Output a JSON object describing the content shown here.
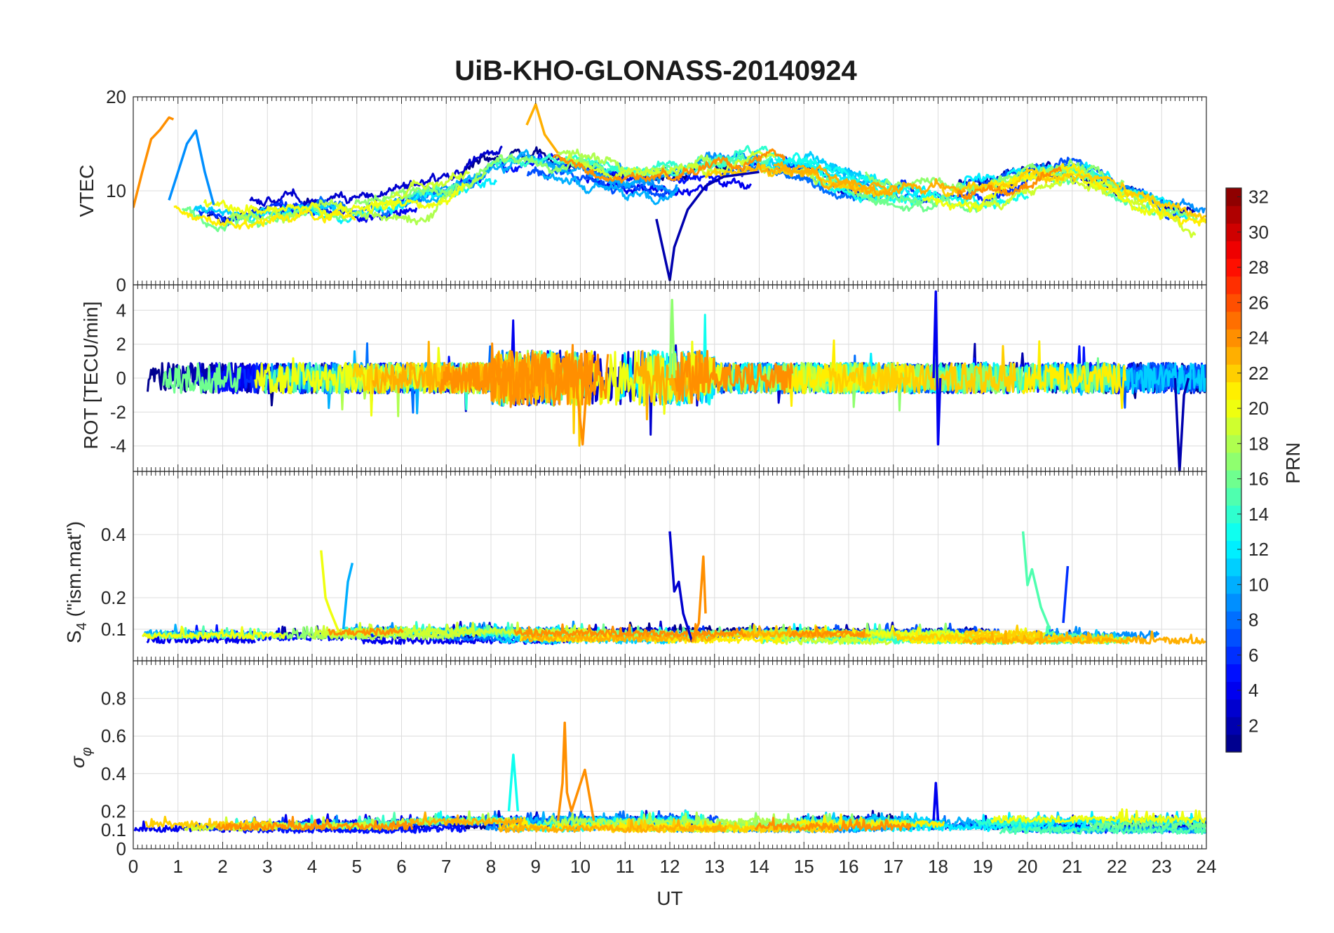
{
  "chart_data": {
    "title": "UiB-KHO-GLONASS-20140924",
    "type": "line",
    "xlabel": "UT",
    "xlim": [
      0,
      24
    ],
    "x_ticks": [
      "0",
      "1",
      "2",
      "3",
      "4",
      "5",
      "6",
      "7",
      "8",
      "9",
      "10",
      "11",
      "12",
      "13",
      "14",
      "15",
      "16",
      "17",
      "18",
      "19",
      "20",
      "21",
      "22",
      "23",
      "24"
    ],
    "panels": [
      {
        "id": "vtec",
        "ylabel": "VTEC",
        "ylim": [
          0,
          20
        ],
        "y_ticks": [
          {
            "v": 0,
            "t": "0"
          },
          {
            "v": 10,
            "t": "10"
          },
          {
            "v": 20,
            "t": "20"
          }
        ],
        "baseline": [
          [
            0,
            8
          ],
          [
            1,
            9
          ],
          [
            2,
            8
          ],
          [
            3,
            8
          ],
          [
            4,
            8
          ],
          [
            5,
            8
          ],
          [
            6,
            8.5
          ],
          [
            7,
            9.5
          ],
          [
            8,
            12
          ],
          [
            9,
            13
          ],
          [
            10,
            12
          ],
          [
            11,
            11
          ],
          [
            12,
            11
          ],
          [
            13,
            12
          ],
          [
            14,
            13
          ],
          [
            15,
            12.5
          ],
          [
            16,
            11
          ],
          [
            17,
            10
          ],
          [
            18,
            10
          ],
          [
            19,
            10
          ],
          [
            20,
            11
          ],
          [
            21,
            12
          ],
          [
            22,
            10
          ],
          [
            23,
            8
          ],
          [
            24,
            7
          ]
        ],
        "noise": 1.6,
        "events": [
          {
            "prn": 24,
            "points": [
              [
                0,
                8.2
              ],
              [
                0.2,
                12
              ],
              [
                0.4,
                15.5
              ],
              [
                0.6,
                16.5
              ],
              [
                0.8,
                17.8
              ],
              [
                0.9,
                17.6
              ]
            ]
          },
          {
            "prn": 9,
            "points": [
              [
                0.8,
                9
              ],
              [
                1.0,
                12
              ],
              [
                1.2,
                15
              ],
              [
                1.4,
                16.4
              ],
              [
                1.6,
                12
              ],
              [
                1.8,
                8.5
              ]
            ]
          },
          {
            "prn": 2,
            "points": [
              [
                11.7,
                7
              ],
              [
                12.0,
                0.5
              ],
              [
                12.1,
                4
              ],
              [
                12.4,
                8
              ],
              [
                12.8,
                10.5
              ],
              [
                13.2,
                11.5
              ],
              [
                14,
                12
              ]
            ]
          },
          {
            "prn": 23,
            "points": [
              [
                8.8,
                17
              ],
              [
                9.0,
                19.2
              ],
              [
                9.2,
                16
              ],
              [
                9.5,
                14
              ]
            ]
          }
        ]
      },
      {
        "id": "rot",
        "ylabel": "ROT [TECU/min]",
        "ylim": [
          -5.5,
          5.5
        ],
        "y_ticks": [
          {
            "v": -4,
            "t": "-4"
          },
          {
            "v": -2,
            "t": "-2"
          },
          {
            "v": 0,
            "t": "0"
          },
          {
            "v": 2,
            "t": "2"
          },
          {
            "v": 4,
            "t": "4"
          }
        ],
        "baseline": [
          [
            0,
            0
          ],
          [
            24,
            0
          ]
        ],
        "noise": 0.9,
        "events": [
          {
            "prn": 4,
            "points": [
              [
                17.9,
                0
              ],
              [
                17.95,
                5.1
              ],
              [
                18.0,
                -3.9
              ],
              [
                18.05,
                0
              ]
            ]
          },
          {
            "prn": 2,
            "points": [
              [
                23.3,
                0
              ],
              [
                23.4,
                -5.5
              ],
              [
                23.5,
                -1
              ],
              [
                23.6,
                0
              ]
            ]
          },
          {
            "prn": 24,
            "points": [
              [
                9.9,
                0
              ],
              [
                10.05,
                -3.9
              ],
              [
                10.15,
                0
              ]
            ]
          },
          {
            "prn": 17,
            "points": [
              [
                12.0,
                0
              ],
              [
                12.05,
                4.6
              ],
              [
                12.1,
                0
              ]
            ]
          }
        ]
      },
      {
        "id": "s4",
        "ylabel": "S4 (\"ism.mat\")",
        "ylim": [
          0,
          0.6
        ],
        "y_ticks": [
          {
            "v": 0.1,
            "t": "0.1"
          },
          {
            "v": 0.2,
            "t": "0.2"
          },
          {
            "v": 0.4,
            "t": "0.4"
          }
        ],
        "baseline": [
          [
            0,
            0.07
          ],
          [
            24,
            0.07
          ]
        ],
        "noise": 0.025,
        "events": [
          {
            "prn": 3,
            "points": [
              [
                12.0,
                0.41
              ],
              [
                12.1,
                0.22
              ],
              [
                12.2,
                0.25
              ],
              [
                12.3,
                0.15
              ],
              [
                12.5,
                0.06
              ]
            ]
          },
          {
            "prn": 15,
            "points": [
              [
                19.9,
                0.41
              ],
              [
                20.0,
                0.24
              ],
              [
                20.1,
                0.29
              ],
              [
                20.3,
                0.17
              ],
              [
                20.5,
                0.1
              ]
            ]
          },
          {
            "prn": 24,
            "points": [
              [
                12.5,
                0.06
              ],
              [
                12.65,
                0.12
              ],
              [
                12.75,
                0.33
              ],
              [
                12.8,
                0.15
              ]
            ]
          },
          {
            "prn": 20,
            "points": [
              [
                4.2,
                0.35
              ],
              [
                4.3,
                0.2
              ],
              [
                4.4,
                0.16
              ],
              [
                4.6,
                0.09
              ]
            ]
          },
          {
            "prn": 10,
            "points": [
              [
                4.7,
                0.1
              ],
              [
                4.8,
                0.25
              ],
              [
                4.9,
                0.31
              ]
            ]
          },
          {
            "prn": 6,
            "points": [
              [
                20.8,
                0.12
              ],
              [
                20.9,
                0.3
              ]
            ]
          }
        ]
      },
      {
        "id": "sigma",
        "ylabel": "σ φ",
        "ylim": [
          0,
          1
        ],
        "y_ticks": [
          {
            "v": 0,
            "t": "0"
          },
          {
            "v": 0.1,
            "t": "0.1"
          },
          {
            "v": 0.2,
            "t": "0.2"
          },
          {
            "v": 0.4,
            "t": "0.4"
          },
          {
            "v": 0.6,
            "t": "0.6"
          },
          {
            "v": 0.8,
            "t": "0.8"
          }
        ],
        "baseline": [
          [
            0,
            0.11
          ],
          [
            24,
            0.11
          ]
        ],
        "noise": 0.045,
        "events": [
          {
            "prn": 24,
            "points": [
              [
                9.5,
                0.15
              ],
              [
                9.6,
                0.35
              ],
              [
                9.65,
                0.67
              ],
              [
                9.7,
                0.3
              ],
              [
                9.8,
                0.2
              ],
              [
                10.1,
                0.42
              ],
              [
                10.3,
                0.15
              ]
            ]
          },
          {
            "prn": 13,
            "points": [
              [
                8.4,
                0.2
              ],
              [
                8.5,
                0.5
              ],
              [
                8.6,
                0.2
              ]
            ]
          },
          {
            "prn": 4,
            "points": [
              [
                17.9,
                0.15
              ],
              [
                17.95,
                0.35
              ],
              [
                18.0,
                0.15
              ]
            ]
          }
        ]
      }
    ],
    "prn_series": [
      1,
      2,
      3,
      4,
      5,
      6,
      7,
      8,
      9,
      10,
      11,
      12,
      13,
      14,
      15,
      16,
      17,
      18,
      19,
      20,
      21,
      22,
      23,
      24
    ],
    "colorbar": {
      "label": "PRN",
      "range": [
        1,
        32
      ],
      "ticks": [
        "2",
        "4",
        "6",
        "8",
        "10",
        "12",
        "14",
        "16",
        "18",
        "20",
        "22",
        "24",
        "26",
        "28",
        "30",
        "32"
      ],
      "colors": [
        "#00008f",
        "#0000af",
        "#0000cf",
        "#0000ef",
        "#000fff",
        "#002fff",
        "#004fff",
        "#006fff",
        "#008fff",
        "#00afff",
        "#00cfff",
        "#00efff",
        "#0fffef",
        "#2fffcf",
        "#4fffaf",
        "#6fff8f",
        "#8fff6f",
        "#afff4f",
        "#cfff2f",
        "#efff0f",
        "#ffef00",
        "#ffcf00",
        "#ffaf00",
        "#ff8f00",
        "#ff6f00",
        "#ff4f00",
        "#ff2f00",
        "#ff0f00",
        "#ef0000",
        "#cf0000",
        "#af0000",
        "#8f0000"
      ]
    }
  }
}
